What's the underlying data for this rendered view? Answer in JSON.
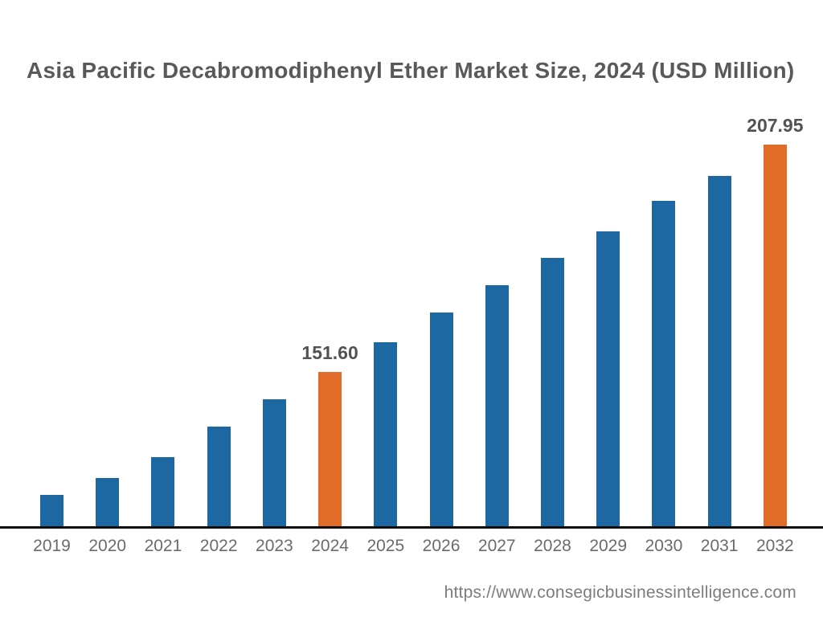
{
  "title": "Asia Pacific Decabromodiphenyl Ether Market Size, 2024 (USD Million)",
  "footer": {
    "url": "https://www.consegicbusinessintelligence.com"
  },
  "chart_data": {
    "type": "bar",
    "title": "Asia Pacific Decabromodiphenyl Ether Market Size, 2024 (USD Million)",
    "categories": [
      "2019",
      "2020",
      "2021",
      "2022",
      "2023",
      "2024",
      "2025",
      "2026",
      "2027",
      "2028",
      "2029",
      "2030",
      "2031",
      "2032"
    ],
    "values": [
      121.3,
      125.5,
      130.65,
      138.15,
      145.0,
      151.6,
      159.0,
      166.35,
      173.1,
      179.9,
      186.45,
      194.05,
      200.2,
      207.95
    ],
    "value_labels": {
      "2024": "151.60",
      "2032": "207.95"
    },
    "highlighted_categories": [
      "2024",
      "2032"
    ],
    "xlabel": "",
    "ylabel": "",
    "ylim": [
      113.5,
      216
    ],
    "grid": false,
    "legend": false,
    "colors": {
      "bar_default": "#1d67a2",
      "bar_highlight": "#e16b29",
      "axis_line": "#0d0d0d",
      "title_text": "#58595b",
      "tick_text": "#6a6b6d",
      "value_label_text": "#515254",
      "url_text": "#7c7d7f"
    }
  }
}
